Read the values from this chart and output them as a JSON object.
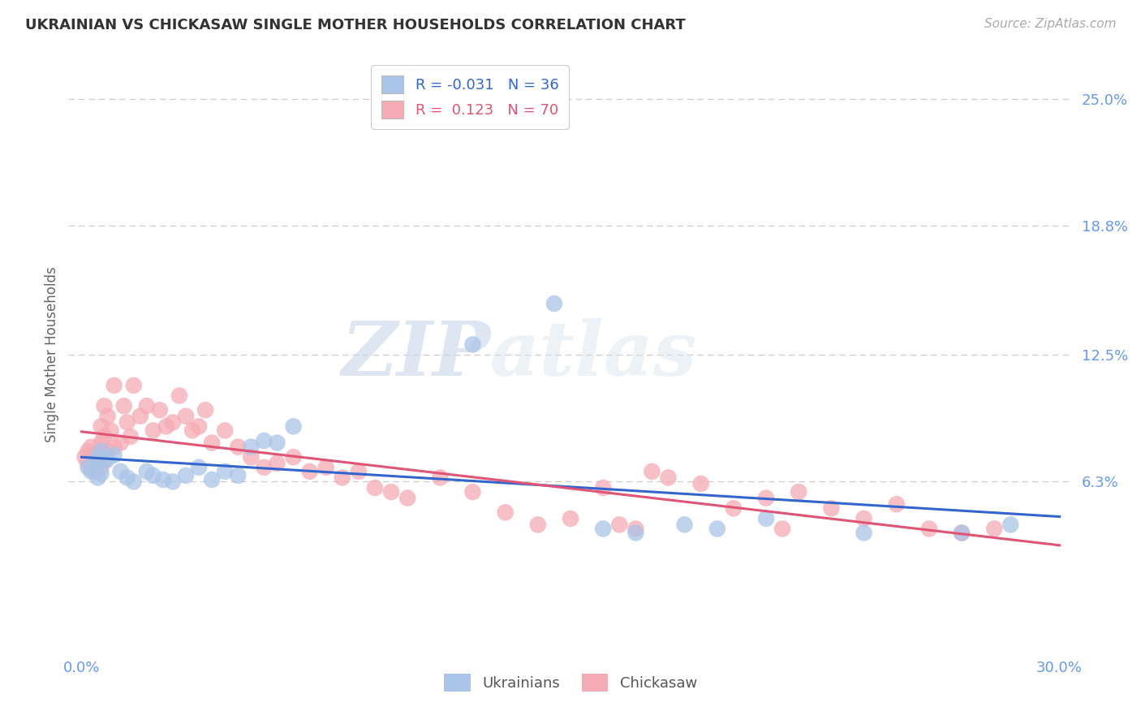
{
  "title": "UKRAINIAN VS CHICKASAW SINGLE MOTHER HOUSEHOLDS CORRELATION CHART",
  "source": "Source: ZipAtlas.com",
  "ylabel": "Single Mother Households",
  "xlim": [
    0.0,
    0.3
  ],
  "ylim": [
    -0.02,
    0.27
  ],
  "legend_blue_r": "-0.031",
  "legend_blue_n": "36",
  "legend_pink_r": "0.123",
  "legend_pink_n": "70",
  "blue_scatter_color": "#aac5e8",
  "pink_scatter_color": "#f5abb5",
  "blue_line_color": "#3366cc",
  "pink_line_color": "#e05575",
  "label_color": "#6699ee",
  "ytick_vals": [
    0.063,
    0.125,
    0.188,
    0.25
  ],
  "ytick_labels": [
    "6.3%",
    "12.5%",
    "18.8%",
    "25.0%"
  ],
  "xtick_vals": [
    0.0,
    0.3
  ],
  "xtick_labels": [
    "0.0%",
    "30.0%"
  ],
  "grid_color": "#cccccc",
  "watermark_zip": "ZIP",
  "watermark_atlas": "atlas",
  "blue_x": [
    0.002,
    0.003,
    0.004,
    0.005,
    0.005,
    0.006,
    0.006,
    0.007,
    0.008,
    0.01,
    0.012,
    0.014,
    0.016,
    0.02,
    0.022,
    0.025,
    0.028,
    0.032,
    0.036,
    0.04,
    0.044,
    0.048,
    0.052,
    0.056,
    0.06,
    0.065,
    0.12,
    0.145,
    0.16,
    0.17,
    0.185,
    0.195,
    0.21,
    0.24,
    0.27,
    0.285
  ],
  "blue_y": [
    0.07,
    0.068,
    0.072,
    0.065,
    0.075,
    0.067,
    0.078,
    0.073,
    0.074,
    0.076,
    0.068,
    0.065,
    0.063,
    0.068,
    0.066,
    0.064,
    0.063,
    0.066,
    0.07,
    0.064,
    0.068,
    0.066,
    0.08,
    0.083,
    0.082,
    0.09,
    0.13,
    0.15,
    0.04,
    0.038,
    0.042,
    0.04,
    0.045,
    0.038,
    0.038,
    0.042
  ],
  "pink_x": [
    0.001,
    0.002,
    0.002,
    0.003,
    0.003,
    0.004,
    0.004,
    0.005,
    0.005,
    0.006,
    0.006,
    0.006,
    0.007,
    0.007,
    0.008,
    0.008,
    0.009,
    0.01,
    0.01,
    0.012,
    0.013,
    0.014,
    0.015,
    0.016,
    0.018,
    0.02,
    0.022,
    0.024,
    0.026,
    0.028,
    0.03,
    0.032,
    0.034,
    0.036,
    0.038,
    0.04,
    0.044,
    0.048,
    0.052,
    0.056,
    0.06,
    0.065,
    0.07,
    0.075,
    0.08,
    0.085,
    0.09,
    0.095,
    0.1,
    0.11,
    0.12,
    0.13,
    0.14,
    0.15,
    0.16,
    0.165,
    0.17,
    0.175,
    0.18,
    0.19,
    0.2,
    0.21,
    0.215,
    0.22,
    0.23,
    0.24,
    0.25,
    0.26,
    0.27,
    0.28
  ],
  "pink_y": [
    0.075,
    0.072,
    0.078,
    0.07,
    0.08,
    0.068,
    0.076,
    0.075,
    0.073,
    0.082,
    0.07,
    0.09,
    0.085,
    0.1,
    0.078,
    0.095,
    0.088,
    0.08,
    0.11,
    0.082,
    0.1,
    0.092,
    0.085,
    0.11,
    0.095,
    0.1,
    0.088,
    0.098,
    0.09,
    0.092,
    0.105,
    0.095,
    0.088,
    0.09,
    0.098,
    0.082,
    0.088,
    0.08,
    0.075,
    0.07,
    0.072,
    0.075,
    0.068,
    0.07,
    0.065,
    0.068,
    0.06,
    0.058,
    0.055,
    0.065,
    0.058,
    0.048,
    0.042,
    0.045,
    0.06,
    0.042,
    0.04,
    0.068,
    0.065,
    0.062,
    0.05,
    0.055,
    0.04,
    0.058,
    0.05,
    0.045,
    0.052,
    0.04,
    0.038,
    0.04
  ]
}
